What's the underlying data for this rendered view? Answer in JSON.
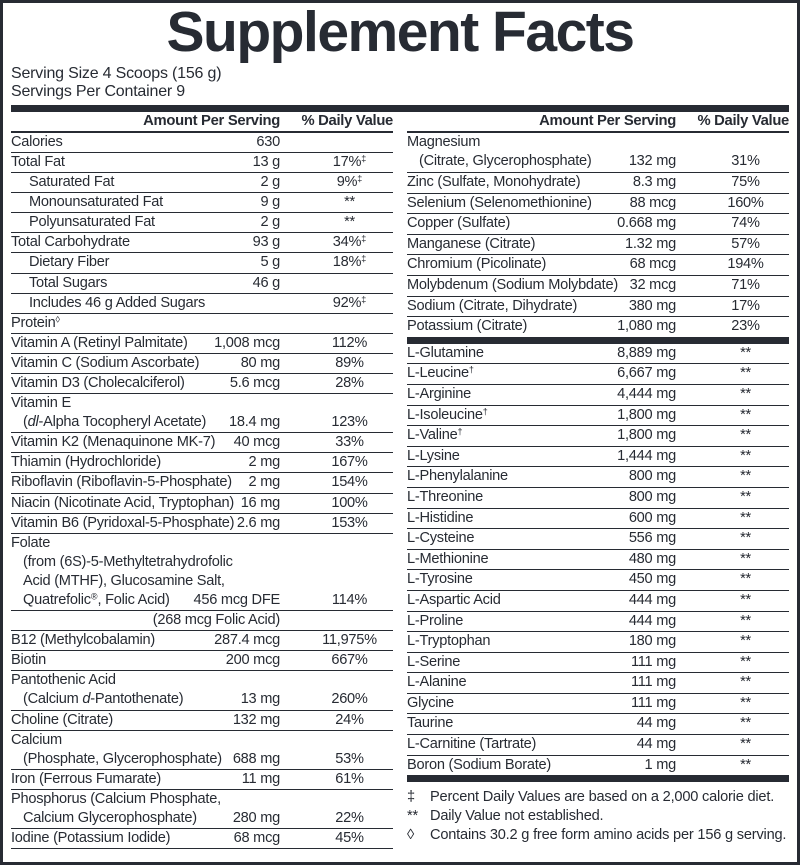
{
  "colors": {
    "text": "#272b33",
    "background": "#ffffff"
  },
  "title": "Supplement Facts",
  "serving": {
    "size": "Serving Size 4 Scoops (156 g)",
    "per_container": "Servings Per Container 9"
  },
  "header": {
    "amount": "Amount Per Serving",
    "dv": "% Daily Value"
  },
  "left_rows": [
    {
      "lines": [
        "Calories"
      ],
      "amount": "630",
      "dv": ""
    },
    {
      "lines": [
        "Total Fat"
      ],
      "amount": "13 g",
      "dv": "17%‡"
    },
    {
      "sub": true,
      "lines": [
        "Saturated Fat"
      ],
      "amount": "2 g",
      "dv": "9%‡"
    },
    {
      "sub": true,
      "lines": [
        "Monounsaturated Fat"
      ],
      "amount": "9 g",
      "dv": "**"
    },
    {
      "sub": true,
      "lines": [
        "Polyunsaturated Fat"
      ],
      "amount": "2 g",
      "dv": "**"
    },
    {
      "lines": [
        "Total Carbohydrate"
      ],
      "amount": "93 g",
      "dv": "34%‡"
    },
    {
      "sub": true,
      "lines": [
        "Dietary Fiber"
      ],
      "amount": "5 g",
      "dv": "18%‡"
    },
    {
      "sub": true,
      "lines": [
        "Total Sugars"
      ],
      "amount": "46 g",
      "dv": ""
    },
    {
      "sub": true,
      "lines": [
        "Includes 46 g Added Sugars"
      ],
      "amount": "",
      "dv": "92%‡"
    },
    {
      "lines": [
        "Protein◊"
      ],
      "amount": "",
      "dv": ""
    },
    {
      "lines": [
        "Vitamin A (Retinyl Palmitate)"
      ],
      "amount": "1,008 mcg",
      "dv": "112%"
    },
    {
      "lines": [
        "Vitamin C (Sodium Ascorbate)"
      ],
      "amount": "80 mg",
      "dv": "89%"
    },
    {
      "lines": [
        "Vitamin D3 (Cholecalciferol)"
      ],
      "amount": "5.6 mcg",
      "dv": "28%"
    },
    {
      "lines": [
        "Vitamin E",
        "(*dl*-Alpha Tocopheryl Acetate)"
      ],
      "amount": "18.4 mg",
      "dv": "123%"
    },
    {
      "lines": [
        "Vitamin K2 (Menaquinone MK-7)"
      ],
      "amount": "40 mcg",
      "dv": "33%"
    },
    {
      "lines": [
        "Thiamin (Hydrochloride)"
      ],
      "amount": "2 mg",
      "dv": "167%"
    },
    {
      "lines": [
        "Riboflavin (Riboflavin-5-Phosphate)"
      ],
      "amount": "2 mg",
      "dv": "154%"
    },
    {
      "lines": [
        "Niacin (Nicotinate Acid, Tryptophan)"
      ],
      "amount": "16 mg",
      "dv": "100%"
    },
    {
      "lines": [
        "Vitamin B6 (Pyridoxal-5-Phosphate)"
      ],
      "amount": "2.6 mg",
      "dv": "153%"
    },
    {
      "lines": [
        "Folate",
        "(from (6S)-5-Methyltetrahydrofolic",
        "Acid (MTHF), Glucosamine Salt,",
        "Quatrefolic®, Folic Acid)"
      ],
      "amount": "456 mcg DFE",
      "dv": "114%"
    },
    {
      "lines": [
        ""
      ],
      "amount": "(268 mcg Folic Acid)",
      "dv": ""
    },
    {
      "lines": [
        "B12 (Methylcobalamin)"
      ],
      "amount": "287.4 mcg",
      "dv": "11,975%"
    },
    {
      "lines": [
        "Biotin"
      ],
      "amount": "200 mcg",
      "dv": "667%"
    },
    {
      "lines": [
        "Pantothenic Acid",
        "(Calcium *d*-Pantothenate)"
      ],
      "amount": "13 mg",
      "dv": "260%"
    },
    {
      "lines": [
        "Choline (Citrate)"
      ],
      "amount": "132 mg",
      "dv": "24%"
    },
    {
      "lines": [
        "Calcium",
        "(Phosphate, Glycerophosphate)"
      ],
      "amount": "688 mg",
      "dv": "53%"
    },
    {
      "lines": [
        "Iron (Ferrous Fumarate)"
      ],
      "amount": "11 mg",
      "dv": "61%"
    },
    {
      "lines": [
        "Phosphorus (Calcium Phosphate,",
        "Calcium Glycerophosphate)"
      ],
      "amount": "280 mg",
      "dv": "22%"
    },
    {
      "lines": [
        "Iodine (Potassium Iodide)"
      ],
      "amount": "68 mcg",
      "dv": "45%"
    }
  ],
  "right_rows": [
    {
      "lines": [
        "Magnesium",
        "(Citrate, Glycerophosphate)"
      ],
      "amount": "132 mg",
      "dv": "31%"
    },
    {
      "lines": [
        "Zinc (Sulfate, Monohydrate)"
      ],
      "amount": "8.3 mg",
      "dv": "75%"
    },
    {
      "lines": [
        "Selenium (Selenomethionine)"
      ],
      "amount": "88 mcg",
      "dv": "160%"
    },
    {
      "lines": [
        "Copper (Sulfate)"
      ],
      "amount": "0.668 mg",
      "dv": "74%"
    },
    {
      "lines": [
        "Manganese (Citrate)"
      ],
      "amount": "1.32 mg",
      "dv": "57%"
    },
    {
      "lines": [
        "Chromium (Picolinate)"
      ],
      "amount": "68 mcg",
      "dv": "194%"
    },
    {
      "lines": [
        "Molybdenum (Sodium Molybdate)"
      ],
      "amount": "32 mcg",
      "dv": "71%"
    },
    {
      "lines": [
        "Sodium (Citrate, Dihydrate)"
      ],
      "amount": "380 mg",
      "dv": "17%"
    },
    {
      "lines": [
        "Potassium (Citrate)"
      ],
      "amount": "1,080 mg",
      "dv": "23%"
    },
    {
      "bar": true
    },
    {
      "lines": [
        "L-Glutamine"
      ],
      "amount": "8,889 mg",
      "dv": "**"
    },
    {
      "lines": [
        "L-Leucine†"
      ],
      "amount": "6,667 mg",
      "dv": "**"
    },
    {
      "lines": [
        "L-Arginine"
      ],
      "amount": "4,444 mg",
      "dv": "**"
    },
    {
      "lines": [
        "L-Isoleucine†"
      ],
      "amount": "1,800 mg",
      "dv": "**"
    },
    {
      "lines": [
        "L-Valine†"
      ],
      "amount": "1,800 mg",
      "dv": "**"
    },
    {
      "lines": [
        "L-Lysine"
      ],
      "amount": "1,444 mg",
      "dv": "**"
    },
    {
      "lines": [
        "L-Phenylalanine"
      ],
      "amount": "800 mg",
      "dv": "**"
    },
    {
      "lines": [
        "L-Threonine"
      ],
      "amount": "800 mg",
      "dv": "**"
    },
    {
      "lines": [
        "L-Histidine"
      ],
      "amount": "600 mg",
      "dv": "**"
    },
    {
      "lines": [
        "L-Cysteine"
      ],
      "amount": "556 mg",
      "dv": "**"
    },
    {
      "lines": [
        "L-Methionine"
      ],
      "amount": "480 mg",
      "dv": "**"
    },
    {
      "lines": [
        "L-Tyrosine"
      ],
      "amount": "450 mg",
      "dv": "**"
    },
    {
      "lines": [
        "L-Aspartic Acid"
      ],
      "amount": "444 mg",
      "dv": "**"
    },
    {
      "lines": [
        "L-Proline"
      ],
      "amount": "444 mg",
      "dv": "**"
    },
    {
      "lines": [
        "L-Tryptophan"
      ],
      "amount": "180 mg",
      "dv": "**"
    },
    {
      "lines": [
        "L-Serine"
      ],
      "amount": "111 mg",
      "dv": "**"
    },
    {
      "lines": [
        "L-Alanine"
      ],
      "amount": "111 mg",
      "dv": "**"
    },
    {
      "lines": [
        "Glycine"
      ],
      "amount": "111 mg",
      "dv": "**"
    },
    {
      "lines": [
        "Taurine"
      ],
      "amount": "44 mg",
      "dv": "**"
    },
    {
      "lines": [
        "L-Carnitine (Tartrate)"
      ],
      "amount": "44 mg",
      "dv": "**"
    },
    {
      "lines": [
        "Boron (Sodium Borate)"
      ],
      "amount": "1 mg",
      "dv": "**"
    },
    {
      "bar": true
    }
  ],
  "footnotes": [
    {
      "sym": "‡",
      "text": "Percent Daily Values are based on a 2,000 calorie diet."
    },
    {
      "sym": "**",
      "text": "Daily Value not established."
    },
    {
      "sym": "◊",
      "text": "Contains 30.2 g free form amino acids per 156 g serving."
    }
  ]
}
